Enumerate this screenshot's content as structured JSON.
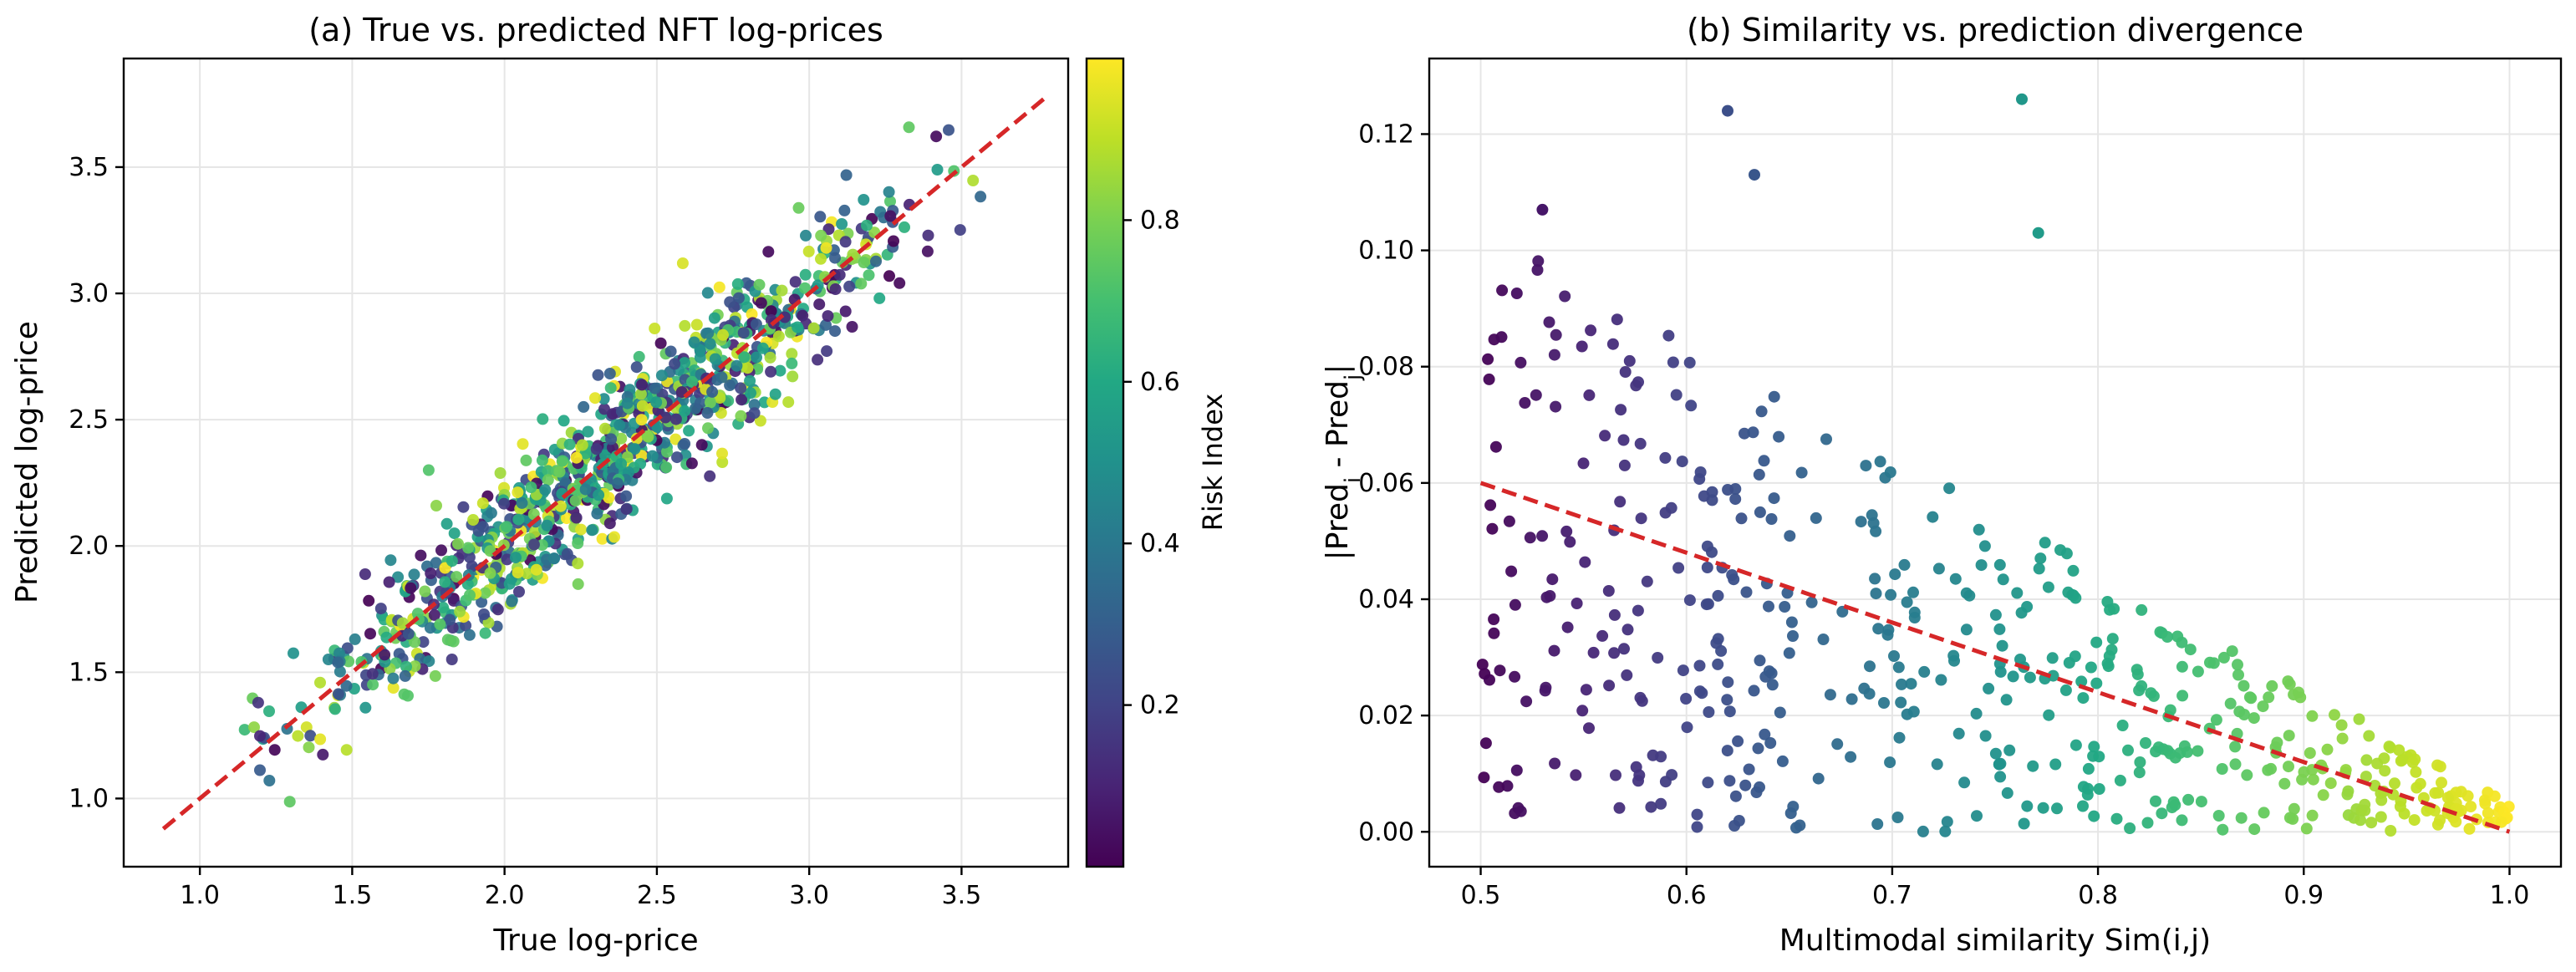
{
  "chart_data": [
    {
      "type": "scatter",
      "title": "(a) True vs. predicted NFT log-prices",
      "xlabel": "True log-price",
      "ylabel": "Predicted log-price",
      "xlim": [
        0.75,
        3.85
      ],
      "ylim": [
        0.73,
        3.93
      ],
      "xticks": [
        1.0,
        1.5,
        2.0,
        2.5,
        3.0,
        3.5
      ],
      "xtick_labels": [
        "1.0",
        "1.5",
        "2.0",
        "2.5",
        "3.0",
        "3.5"
      ],
      "yticks": [
        1.0,
        1.5,
        2.0,
        2.5,
        3.0,
        3.5
      ],
      "ytick_labels": [
        "1.0",
        "1.5",
        "2.0",
        "2.5",
        "3.0",
        "3.5"
      ],
      "grid": true,
      "n_points": 1000,
      "x_range": [
        0.88,
        3.78
      ],
      "fit_line": {
        "x": [
          0.88,
          3.78
        ],
        "y": [
          0.88,
          3.78
        ],
        "color": "#d62728",
        "style": "dashed"
      },
      "noise_std": 0.14,
      "color_by": "Risk Index",
      "colorbar": {
        "label": "Risk Index",
        "range": [
          0.0,
          1.0
        ],
        "ticks": [
          0.2,
          0.4,
          0.6,
          0.8
        ],
        "tick_labels": [
          "0.2",
          "0.4",
          "0.6",
          "0.8"
        ],
        "colormap": "viridis"
      }
    },
    {
      "type": "scatter",
      "title": "(b) Similarity vs. prediction divergence",
      "xlabel": "Multimodal similarity  Sim(i,j)",
      "ylabel": "|Pred",
      "ylabel_sub_i": "i",
      "ylabel_mid": " - Pred",
      "ylabel_sub_j": "j",
      "ylabel_end": "|",
      "xlim": [
        0.475,
        1.025
      ],
      "ylim": [
        -0.006,
        0.133
      ],
      "xticks": [
        0.5,
        0.6,
        0.7,
        0.8,
        0.9,
        1.0
      ],
      "xtick_labels": [
        "0.5",
        "0.6",
        "0.7",
        "0.8",
        "0.9",
        "1.0"
      ],
      "yticks": [
        0.0,
        0.02,
        0.04,
        0.06,
        0.08,
        0.1,
        0.12
      ],
      "ytick_labels": [
        "0.00",
        "0.02",
        "0.04",
        "0.06",
        "0.08",
        "0.10",
        "0.12"
      ],
      "grid": true,
      "n_points": 520,
      "x_range": [
        0.5,
        1.0
      ],
      "fit_line": {
        "x": [
          0.5,
          1.0
        ],
        "y": [
          0.06,
          0.0
        ],
        "color": "#d62728",
        "style": "dashed"
      },
      "max_divergence_at_low_sim": 0.1,
      "outliers": [
        {
          "x": 0.62,
          "y": 0.124
        },
        {
          "x": 0.633,
          "y": 0.113
        },
        {
          "x": 0.763,
          "y": 0.126
        },
        {
          "x": 0.53,
          "y": 0.107
        },
        {
          "x": 0.771,
          "y": 0.103
        }
      ],
      "color_by": "similarity",
      "colormap": "viridis"
    }
  ]
}
